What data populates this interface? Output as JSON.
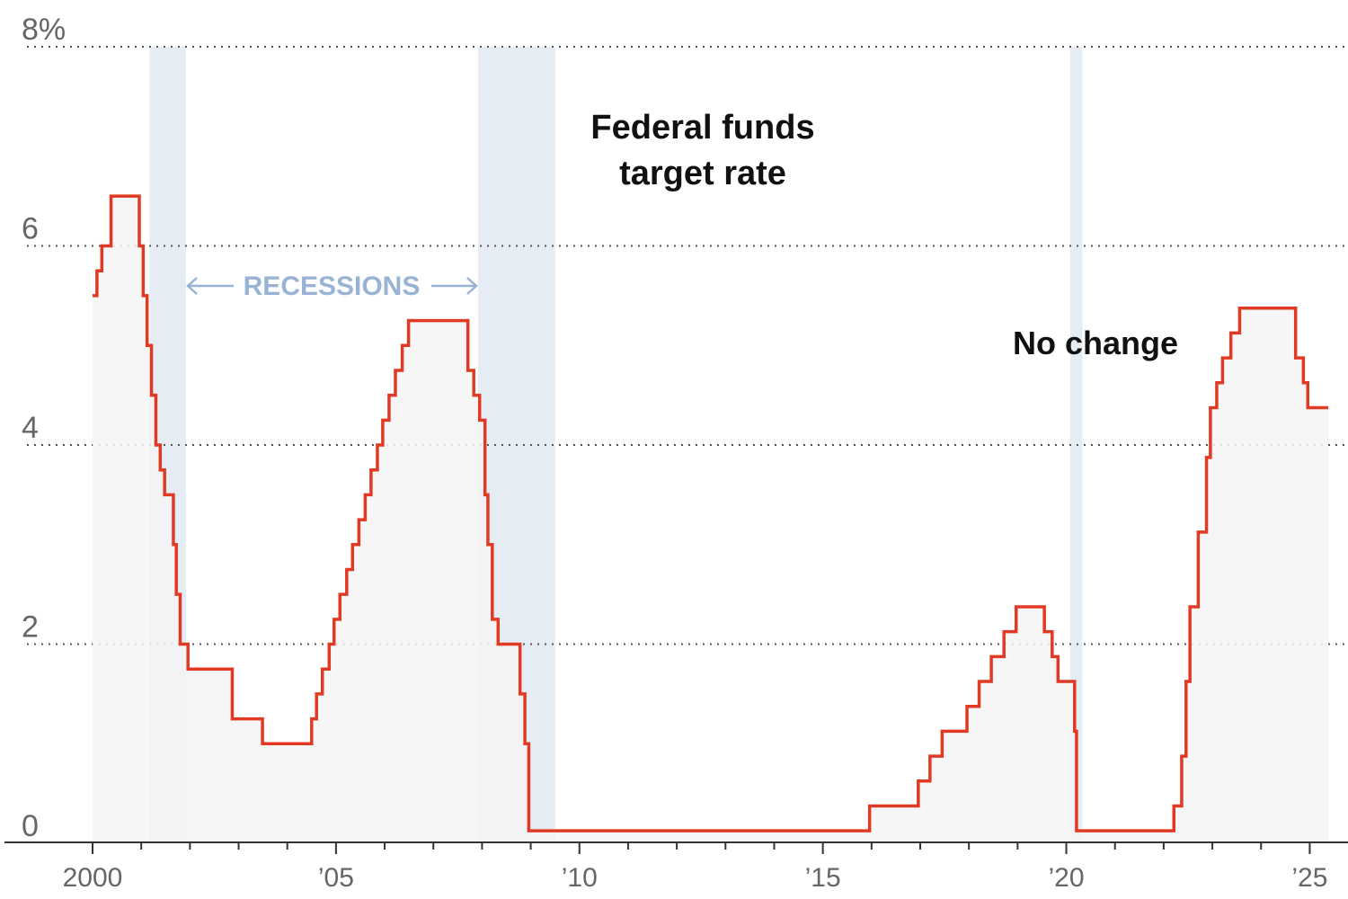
{
  "chart_data": {
    "type": "line",
    "title": "Federal funds target rate",
    "title_lines": [
      "Federal funds",
      "target rate"
    ],
    "yticks": [
      {
        "value": 8,
        "label": "8%"
      },
      {
        "value": 6,
        "label": "6"
      },
      {
        "value": 4,
        "label": "4"
      },
      {
        "value": 2,
        "label": "2"
      },
      {
        "value": 0,
        "label": "0"
      }
    ],
    "xticks": [
      {
        "value": 2000,
        "label": "2000"
      },
      {
        "value": 2005,
        "label": "’05"
      },
      {
        "value": 2010,
        "label": "’10"
      },
      {
        "value": 2015,
        "label": "’15"
      },
      {
        "value": 2020,
        "label": "’20"
      },
      {
        "value": 2025,
        "label": "’25"
      }
    ],
    "xlim": [
      1998.2,
      2025.7
    ],
    "ylim": [
      0,
      8
    ],
    "grid": "horizontal dotted",
    "series": [
      {
        "style": "step",
        "x": [
          2000.0,
          2000.09,
          2000.19,
          2000.38,
          2000.96,
          2001.04,
          2001.12,
          2001.21,
          2001.3,
          2001.39,
          2001.48,
          2001.66,
          2001.72,
          2001.8,
          2001.86,
          2001.96,
          2002.87,
          2003.49,
          2004.5,
          2004.6,
          2004.72,
          2004.86,
          2004.96,
          2005.08,
          2005.22,
          2005.34,
          2005.47,
          2005.6,
          2005.72,
          2005.85,
          2005.96,
          2006.09,
          2006.22,
          2006.36,
          2006.49,
          2007.71,
          2007.83,
          2007.95,
          2008.06,
          2008.12,
          2008.21,
          2008.33,
          2008.78,
          2008.88,
          2008.96,
          2015.96,
          2016.96,
          2017.2,
          2017.45,
          2017.96,
          2018.21,
          2018.46,
          2018.72,
          2018.97,
          2019.55,
          2019.71,
          2019.83,
          2020.17,
          2020.21,
          2022.21,
          2022.37,
          2022.46,
          2022.54,
          2022.71,
          2022.88,
          2022.96,
          2023.09,
          2023.21,
          2023.38,
          2023.56,
          2024.71,
          2024.87,
          2024.96,
          2025.38
        ],
        "y": [
          5.5,
          5.75,
          6.0,
          6.5,
          6.0,
          5.5,
          5.0,
          4.5,
          4.0,
          3.75,
          3.5,
          3.0,
          2.5,
          2.0,
          2.0,
          1.75,
          1.25,
          1.0,
          1.25,
          1.5,
          1.75,
          2.0,
          2.25,
          2.5,
          2.75,
          3.0,
          3.25,
          3.5,
          3.75,
          4.0,
          4.25,
          4.5,
          4.75,
          5.0,
          5.25,
          4.75,
          4.5,
          4.25,
          3.5,
          3.0,
          2.25,
          2.0,
          1.5,
          1.0,
          0.125,
          0.375,
          0.625,
          0.875,
          1.125,
          1.375,
          1.625,
          1.875,
          2.125,
          2.375,
          2.125,
          1.875,
          1.625,
          1.125,
          0.125,
          0.375,
          0.875,
          1.625,
          2.375,
          3.125,
          3.875,
          4.375,
          4.625,
          4.875,
          5.125,
          5.375,
          4.875,
          4.625,
          4.375,
          4.375
        ],
        "color": "#e03a24"
      }
    ],
    "recessions": [
      {
        "start": 2001.17,
        "end": 2001.92
      },
      {
        "start": 2007.92,
        "end": 2009.5
      },
      {
        "start": 2020.08,
        "end": 2020.33
      }
    ],
    "annotations": {
      "recessions_label": "RECESSIONS",
      "no_change": "No change"
    },
    "colors": {
      "line": "#e03a24",
      "fill": "#f4f4f4",
      "recession": "#e6ecf4",
      "recession_label": "#98b3d4",
      "grid": "#555555",
      "axis": "#333333"
    }
  }
}
